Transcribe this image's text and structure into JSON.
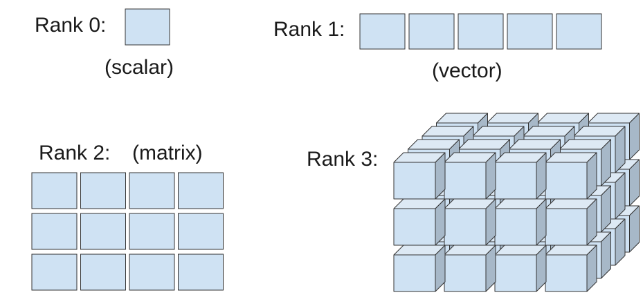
{
  "colors": {
    "cell_fill": "#cfe2f3",
    "cell_stroke": "#333333",
    "cube_front": "#cfe2f3",
    "cube_top": "#dde9f4",
    "cube_side": "#a7b8c8",
    "cube_stroke": "#333333",
    "text": "#1a1a1a",
    "background": "#ffffff"
  },
  "rank0": {
    "label": "Rank 0:",
    "caption": "(scalar)",
    "shape": [
      1
    ]
  },
  "rank1": {
    "label": "Rank 1:",
    "caption": "(vector)",
    "shape": [
      5
    ]
  },
  "rank2": {
    "label": "Rank 2:",
    "caption": "(matrix)",
    "shape": [
      3,
      4
    ]
  },
  "rank3": {
    "label": "Rank 3:",
    "shape": [
      3,
      4,
      4
    ]
  }
}
